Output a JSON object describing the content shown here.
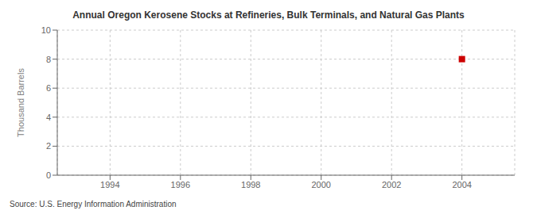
{
  "chart_data": {
    "type": "scatter",
    "title": "Annual Oregon Kerosene Stocks at Refineries, Bulk Terminals, and Natural Gas Plants",
    "ylabel": "Thousand Barrels",
    "source": "Source: U.S. Energy Information Administration",
    "x": [
      2004
    ],
    "values": [
      8
    ],
    "color": "#cc0000",
    "marker": "square",
    "xlim": [
      1992.5,
      2005.5
    ],
    "xticks": [
      1994,
      1996,
      1998,
      2000,
      2002,
      2004
    ],
    "ylim": [
      0,
      10
    ],
    "yticks": [
      0,
      2,
      4,
      6,
      8,
      10
    ],
    "grid": true
  }
}
